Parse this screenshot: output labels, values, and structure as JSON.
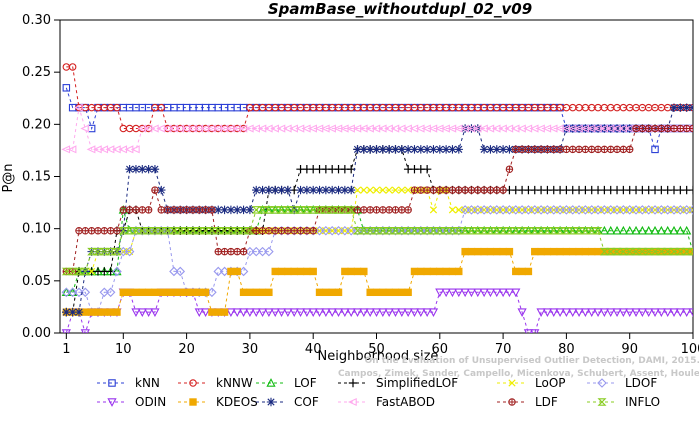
{
  "chart_data": {
    "type": "line",
    "title": "SpamBase_withoutdupl_02_v09",
    "xlabel": "Neighborhood size",
    "ylabel": "P@n",
    "xlim": [
      0,
      100
    ],
    "ylim": [
      0,
      0.3
    ],
    "xticks": [
      1,
      10,
      20,
      30,
      40,
      50,
      60,
      70,
      80,
      90,
      100
    ],
    "yticks": [
      0.0,
      0.05,
      0.1,
      0.15,
      0.2,
      0.25,
      0.3
    ],
    "watermark": [
      "Campos, Zimek, Sander, Campello, Micenkova, Schubert, Assent, Houle",
      "On the Evaluation of Unsupervised Outlier Detection, DAMI, 2015."
    ],
    "legend_position": "bottom",
    "series": [
      {
        "name": "kNN",
        "color": "#2b3fd6",
        "marker": "square",
        "points": [
          [
            1,
            0.235
          ],
          [
            2,
            0.216
          ],
          [
            4,
            0.216
          ],
          [
            5,
            0.196
          ],
          [
            6,
            0.216
          ],
          [
            79,
            0.216
          ],
          [
            80,
            0.196
          ],
          [
            93,
            0.196
          ],
          [
            94,
            0.176
          ],
          [
            95,
            0.196
          ],
          [
            100,
            0.196
          ]
        ]
      },
      {
        "name": "kNNW",
        "color": "#d42020",
        "marker": "circle",
        "points": [
          [
            1,
            0.255
          ],
          [
            2,
            0.255
          ],
          [
            3,
            0.216
          ],
          [
            9,
            0.216
          ],
          [
            10,
            0.196
          ],
          [
            14,
            0.196
          ],
          [
            15,
            0.216
          ],
          [
            16,
            0.216
          ],
          [
            17,
            0.196
          ],
          [
            29,
            0.196
          ],
          [
            30,
            0.216
          ],
          [
            100,
            0.216
          ]
        ]
      },
      {
        "name": "LOF",
        "color": "#11bb11",
        "marker": "triangle-up",
        "points": [
          [
            1,
            0.039
          ],
          [
            2,
            0.039
          ],
          [
            3,
            0.059
          ],
          [
            9,
            0.059
          ],
          [
            10,
            0.118
          ],
          [
            11,
            0.098
          ],
          [
            31,
            0.098
          ],
          [
            32,
            0.118
          ],
          [
            47,
            0.118
          ],
          [
            48,
            0.098
          ],
          [
            99,
            0.098
          ],
          [
            100,
            0.078
          ]
        ]
      },
      {
        "name": "SimplifiedLOF",
        "color": "#000000",
        "marker": "plus",
        "points": [
          [
            1,
            0.02
          ],
          [
            2,
            0.02
          ],
          [
            3,
            0.059
          ],
          [
            8,
            0.059
          ],
          [
            9,
            0.098
          ],
          [
            10,
            0.098
          ],
          [
            11,
            0.118
          ],
          [
            12,
            0.118
          ],
          [
            13,
            0.098
          ],
          [
            32,
            0.098
          ],
          [
            33,
            0.137
          ],
          [
            37,
            0.137
          ],
          [
            38,
            0.157
          ],
          [
            46,
            0.157
          ],
          [
            47,
            0.176
          ],
          [
            54,
            0.176
          ],
          [
            55,
            0.157
          ],
          [
            58,
            0.157
          ],
          [
            59,
            0.137
          ],
          [
            100,
            0.137
          ]
        ]
      },
      {
        "name": "LoOP",
        "color": "#eeee00",
        "marker": "x",
        "points": [
          [
            1,
            0.059
          ],
          [
            5,
            0.059
          ],
          [
            6,
            0.078
          ],
          [
            11,
            0.078
          ],
          [
            12,
            0.098
          ],
          [
            46,
            0.098
          ],
          [
            47,
            0.137
          ],
          [
            58,
            0.137
          ],
          [
            59,
            0.118
          ],
          [
            60,
            0.137
          ],
          [
            61,
            0.137
          ],
          [
            62,
            0.118
          ],
          [
            99,
            0.118
          ],
          [
            100,
            0.118
          ]
        ]
      },
      {
        "name": "LDOF",
        "color": "#9999ee",
        "marker": "diamond",
        "points": [
          [
            1,
            0.039
          ],
          [
            4,
            0.039
          ],
          [
            5,
            0.02
          ],
          [
            6,
            0.02
          ],
          [
            7,
            0.039
          ],
          [
            8,
            0.039
          ],
          [
            9,
            0.059
          ],
          [
            10,
            0.078
          ],
          [
            11,
            0.078
          ],
          [
            12,
            0.098
          ],
          [
            17,
            0.098
          ],
          [
            18,
            0.059
          ],
          [
            19,
            0.059
          ],
          [
            20,
            0.039
          ],
          [
            24,
            0.039
          ],
          [
            25,
            0.059
          ],
          [
            29,
            0.059
          ],
          [
            30,
            0.078
          ],
          [
            33,
            0.078
          ],
          [
            34,
            0.098
          ],
          [
            63,
            0.098
          ],
          [
            64,
            0.118
          ],
          [
            100,
            0.118
          ]
        ]
      },
      {
        "name": "ODIN",
        "color": "#9933ee",
        "marker": "triangle-down",
        "points": [
          [
            1,
            0.0
          ],
          [
            2,
            0.02
          ],
          [
            3,
            0.02
          ],
          [
            4,
            0.0
          ],
          [
            5,
            0.02
          ],
          [
            7,
            0.02
          ],
          [
            10,
            0.039
          ],
          [
            11,
            0.039
          ],
          [
            12,
            0.02
          ],
          [
            13,
            0.02
          ],
          [
            16,
            0.039
          ],
          [
            20,
            0.039
          ],
          [
            22,
            0.02
          ],
          [
            26,
            0.02
          ],
          [
            28,
            0.02
          ],
          [
            56,
            0.02
          ],
          [
            60,
            0.039
          ],
          [
            65,
            0.039
          ],
          [
            73,
            0.02
          ],
          [
            74,
            0.0
          ],
          [
            75,
            0.0
          ],
          [
            76,
            0.02
          ],
          [
            100,
            0.02
          ]
        ]
      },
      {
        "name": "KDEOS",
        "color": "#f0a800",
        "marker": "square-filled",
        "points": [
          [
            1,
            0.02
          ],
          [
            9,
            0.02
          ],
          [
            10,
            0.039
          ],
          [
            23,
            0.039
          ],
          [
            24,
            0.02
          ],
          [
            26,
            0.02
          ],
          [
            27,
            0.059
          ],
          [
            28,
            0.059
          ],
          [
            29,
            0.039
          ],
          [
            33,
            0.039
          ],
          [
            34,
            0.059
          ],
          [
            40,
            0.059
          ],
          [
            41,
            0.039
          ],
          [
            44,
            0.039
          ],
          [
            45,
            0.059
          ],
          [
            48,
            0.059
          ],
          [
            49,
            0.039
          ],
          [
            55,
            0.039
          ],
          [
            56,
            0.059
          ],
          [
            63,
            0.059
          ],
          [
            64,
            0.078
          ],
          [
            71,
            0.078
          ],
          [
            72,
            0.059
          ],
          [
            74,
            0.059
          ],
          [
            75,
            0.078
          ],
          [
            100,
            0.078
          ]
        ]
      },
      {
        "name": "COF",
        "color": "#1a2a80",
        "marker": "asterisk",
        "points": [
          [
            1,
            0.02
          ],
          [
            3,
            0.02
          ],
          [
            4,
            0.059
          ],
          [
            5,
            0.078
          ],
          [
            9,
            0.078
          ],
          [
            10,
            0.098
          ],
          [
            11,
            0.157
          ],
          [
            12,
            0.157
          ],
          [
            16,
            0.137
          ],
          [
            17,
            0.118
          ],
          [
            30,
            0.118
          ],
          [
            31,
            0.137
          ],
          [
            36,
            0.137
          ],
          [
            37,
            0.118
          ],
          [
            38,
            0.137
          ],
          [
            46,
            0.137
          ],
          [
            47,
            0.176
          ],
          [
            63,
            0.176
          ],
          [
            64,
            0.196
          ],
          [
            66,
            0.196
          ],
          [
            67,
            0.176
          ],
          [
            79,
            0.176
          ],
          [
            80,
            0.196
          ],
          [
            96,
            0.196
          ],
          [
            97,
            0.216
          ],
          [
            100,
            0.216
          ]
        ]
      },
      {
        "name": "FastABOD",
        "color": "#ffaaee",
        "marker": "triangle-left",
        "points": [
          [
            1,
            0.176
          ],
          [
            2,
            0.176
          ],
          [
            3,
            0.216
          ],
          [
            4,
            0.196
          ],
          [
            5,
            0.176
          ],
          [
            12,
            0.176
          ],
          [
            13,
            0.196
          ],
          [
            100,
            0.196
          ]
        ]
      },
      {
        "name": "LDF",
        "color": "#a02020",
        "marker": "circle-plus",
        "points": [
          [
            1,
            0.059
          ],
          [
            2,
            0.059
          ],
          [
            3,
            0.098
          ],
          [
            9,
            0.098
          ],
          [
            10,
            0.118
          ],
          [
            14,
            0.118
          ],
          [
            15,
            0.137
          ],
          [
            16,
            0.118
          ],
          [
            24,
            0.118
          ],
          [
            25,
            0.078
          ],
          [
            29,
            0.078
          ],
          [
            30,
            0.098
          ],
          [
            40,
            0.098
          ],
          [
            41,
            0.118
          ],
          [
            55,
            0.118
          ],
          [
            56,
            0.137
          ],
          [
            70,
            0.137
          ],
          [
            71,
            0.157
          ],
          [
            72,
            0.176
          ],
          [
            90,
            0.176
          ],
          [
            91,
            0.196
          ],
          [
            100,
            0.196
          ]
        ]
      },
      {
        "name": "INFLO",
        "color": "#88cc22",
        "marker": "hourglass",
        "points": [
          [
            1,
            0.059
          ],
          [
            4,
            0.059
          ],
          [
            5,
            0.078
          ],
          [
            9,
            0.078
          ],
          [
            10,
            0.098
          ],
          [
            30,
            0.098
          ],
          [
            31,
            0.118
          ],
          [
            46,
            0.118
          ],
          [
            47,
            0.098
          ],
          [
            85,
            0.098
          ],
          [
            86,
            0.078
          ],
          [
            100,
            0.078
          ]
        ]
      }
    ]
  }
}
